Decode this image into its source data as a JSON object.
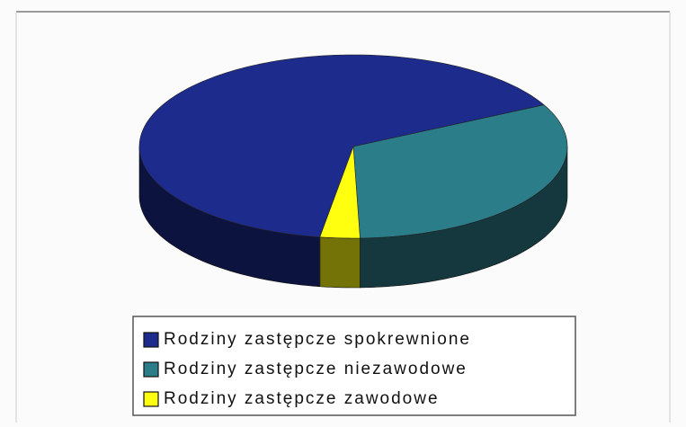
{
  "chart_data": {
    "type": "pie3d",
    "categories": [
      "Rodziny zastępcze spokrewnione",
      "Rodziny zastępcze niezawodowe",
      "Rodziny zastępcze zawodowe"
    ],
    "values": [
      65,
      32,
      3
    ],
    "colors": [
      "#1c2b8c",
      "#2c7d8a",
      "#ffff10"
    ],
    "legend": "bottom"
  }
}
